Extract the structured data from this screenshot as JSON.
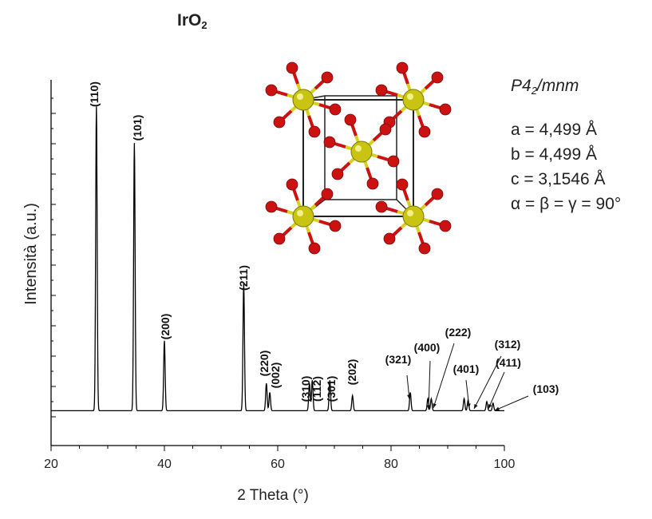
{
  "title": {
    "formula": "IrO",
    "subscript": "2"
  },
  "space_group": {
    "prefix": "P4",
    "subscript": "2",
    "suffix": "/mnm"
  },
  "lattice": [
    "a = 4,499 Å",
    "b = 4,499 Å",
    "c = 3,1546 Å",
    "α = β = γ = 90°"
  ],
  "colors": {
    "pattern": "#000000",
    "iridium": "#c9c412",
    "oxygen": "#cc1111",
    "bond_ir": "#d6d21c",
    "bond_o": "#cc1111"
  },
  "chart_data": {
    "type": "line",
    "title": "IrO2",
    "xlabel": "2 Theta (°)",
    "ylabel": "Intensità (a.u.)",
    "xlim": [
      20,
      100
    ],
    "xticks": [
      20,
      40,
      60,
      80,
      100
    ],
    "y_tick_labels": "none",
    "grid": false,
    "legend": "none",
    "baseline": 2,
    "peaks": [
      {
        "label": "(110)",
        "x": 28.0,
        "y": 100
      },
      {
        "label": "(101)",
        "x": 34.7,
        "y": 88
      },
      {
        "label": "(200)",
        "x": 40.0,
        "y": 23
      },
      {
        "label": "(211)",
        "x": 54.0,
        "y": 42
      },
      {
        "label": "(220)",
        "x": 58.0,
        "y": 9
      },
      {
        "label": "(002)",
        "x": 58.6,
        "y": 6
      },
      {
        "label": "(310)",
        "x": 65.6,
        "y": 9
      },
      {
        "label": "(112)",
        "x": 66.1,
        "y": 10
      },
      {
        "label": "(301)",
        "x": 69.2,
        "y": 10
      },
      {
        "label": "(202)",
        "x": 73.2,
        "y": 5
      },
      {
        "label": "(321)",
        "x": 83.4,
        "y": 6
      },
      {
        "label": "(400)",
        "x": 86.5,
        "y": 4
      },
      {
        "label": "(222)",
        "x": 87.1,
        "y": 4
      },
      {
        "label": "(401)",
        "x": 92.9,
        "y": 4
      },
      {
        "label": "(312)",
        "x": 93.6,
        "y": 3.5
      },
      {
        "label": "(411)",
        "x": 96.9,
        "y": 3
      },
      {
        "label": "(103)",
        "x": 98.0,
        "y": 2.5
      }
    ]
  }
}
